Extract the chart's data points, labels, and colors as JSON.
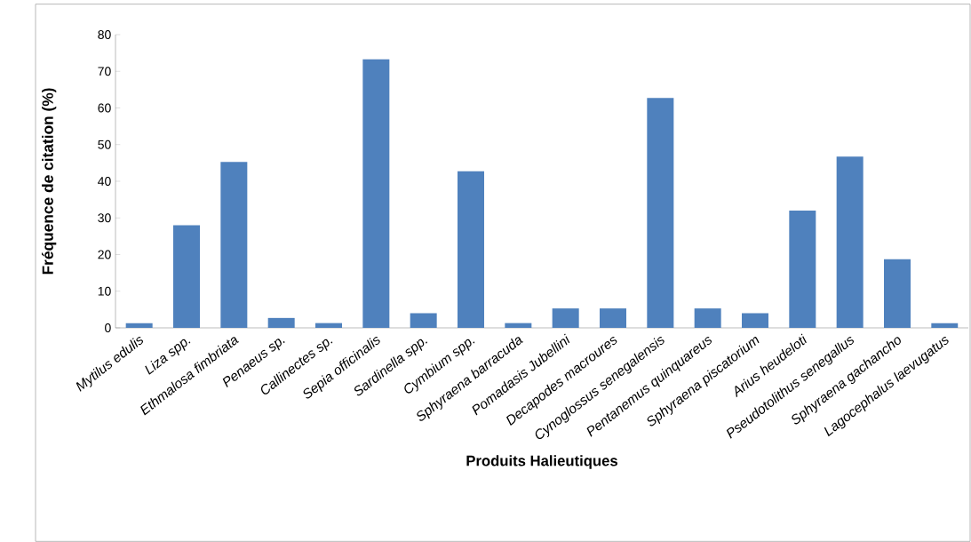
{
  "chart_data": {
    "type": "bar",
    "xlabel": "Produits Halieutiques",
    "ylabel": "Fréquence de citation (%)",
    "categories": [
      "Mytilus edulis",
      "Liza spp.",
      "Ethmalosa fimbriata",
      "Penaeus sp.",
      "Callinectes sp.",
      "Sepia officinalis",
      "Sardinella spp.",
      "Cymbium spp.",
      "Sphyraena barracuda",
      "Pomadasis Jubellini",
      "Decapodes macroures",
      "Cynoglossus senegalensis",
      "Pentanemus quinquareus",
      "Sphyraena piscatorium",
      "Arius heudeloti",
      "Pseudotolithus senegallus",
      "Sphyraena gachancho",
      "Lagocephalus laevugatus"
    ],
    "values": [
      1.3,
      28,
      45.3,
      2.7,
      1.3,
      73.3,
      4,
      42.7,
      1.3,
      5.3,
      5.3,
      62.7,
      5.3,
      4,
      32,
      46.7,
      18.7,
      1.3
    ],
    "color": "#4f81bd",
    "ylim": [
      0,
      80
    ],
    "yticks": [
      0,
      10,
      20,
      30,
      40,
      50,
      60,
      70,
      80
    ]
  }
}
